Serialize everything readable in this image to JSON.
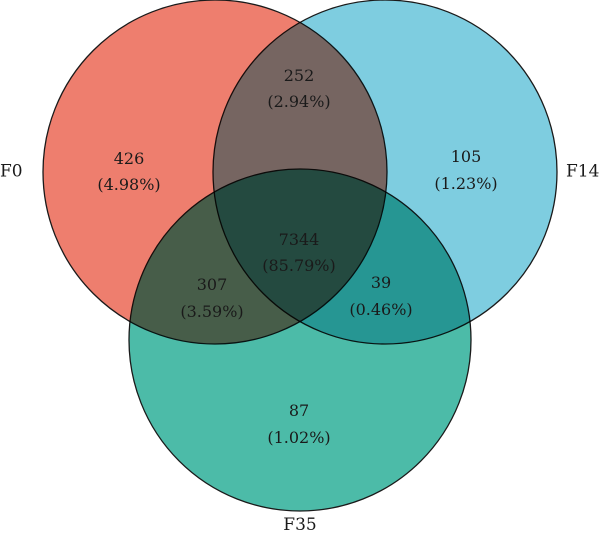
{
  "sets": [
    {
      "name": "F0",
      "color": "#EE7E6E"
    },
    {
      "name": "F14",
      "color": "#7ECDE0"
    },
    {
      "name": "F35",
      "color": "#4CBBA8"
    }
  ],
  "regions": [
    {
      "id": "f0-only",
      "count": "426",
      "percent": "(4.98%)"
    },
    {
      "id": "f0-f14",
      "count": "252",
      "percent": "(2.94%)"
    },
    {
      "id": "f14-only",
      "count": "105",
      "percent": "(1.23%)"
    },
    {
      "id": "f0-f14-f35",
      "count": "7344",
      "percent": "(85.79%)"
    },
    {
      "id": "f0-f35",
      "count": "307",
      "percent": "(3.59%)"
    },
    {
      "id": "f14-f35",
      "count": "39",
      "percent": "(0.46%)"
    },
    {
      "id": "f35-only",
      "count": "87",
      "percent": "(1.02%)"
    }
  ]
}
